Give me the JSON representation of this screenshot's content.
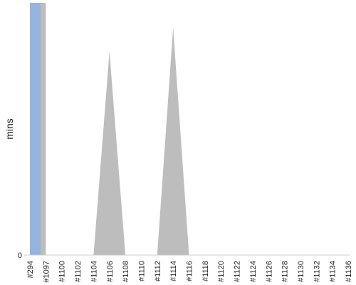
{
  "chart_data": {
    "type": "area",
    "title": "",
    "xlabel": "",
    "ylabel": "mins",
    "x": [
      "#294",
      "#1097",
      "#1100",
      "#1102",
      "#1104",
      "#1106",
      "#1108",
      "#1110",
      "#1112",
      "#1114",
      "#1116",
      "#1118",
      "#1120",
      "#1122",
      "#1124",
      "#1126",
      "#1128",
      "#1130",
      "#1132",
      "#1134",
      "#1136"
    ],
    "y_tick_labels": [
      "0"
    ],
    "ylim": [
      0,
      100
    ],
    "series": [
      {
        "color": "#bdbdbd",
        "values": [
          110,
          0,
          0,
          0,
          0,
          85,
          0,
          0,
          0,
          95,
          0,
          0,
          0,
          0,
          0,
          0,
          0,
          0,
          0,
          0,
          0
        ]
      },
      {
        "color": "#95b4de",
        "values": [
          110,
          0,
          0,
          0,
          0,
          0,
          0,
          0,
          0,
          0,
          0,
          0,
          0,
          0,
          0,
          0,
          0,
          0,
          0,
          0,
          0
        ]
      }
    ],
    "grid": false,
    "legend": "none"
  }
}
